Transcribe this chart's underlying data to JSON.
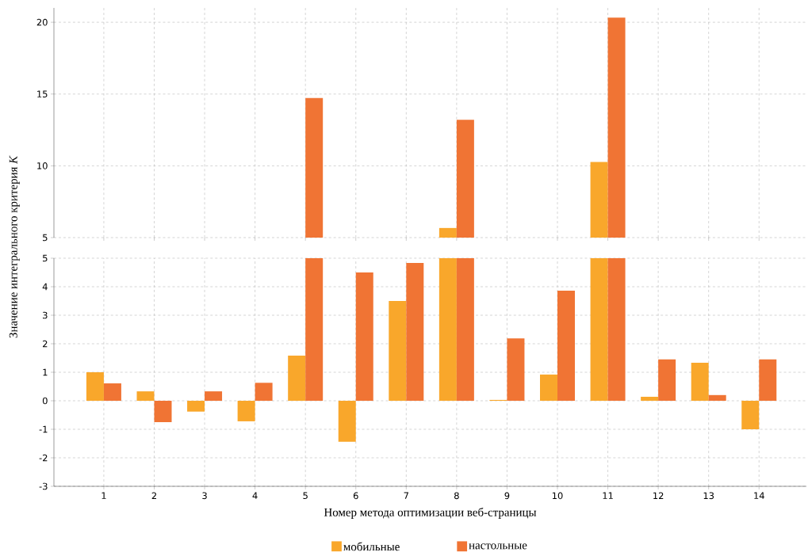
{
  "chart_data": [
    {
      "type": "bar",
      "categories": [
        "1",
        "2",
        "3",
        "4",
        "5",
        "6",
        "7",
        "8",
        "9",
        "10",
        "11",
        "12",
        "13",
        "14"
      ],
      "series": [
        {
          "color": "#f9a72b",
          "values": [
            null,
            null,
            null,
            null,
            null,
            null,
            null,
            5.67,
            null,
            null,
            10.27,
            null,
            null,
            null
          ]
        },
        {
          "color": "#f07434",
          "values": [
            null,
            null,
            null,
            null,
            14.72,
            null,
            null,
            13.2,
            null,
            null,
            20.32,
            null,
            null,
            null
          ]
        }
      ],
      "ylim": [
        5,
        21
      ],
      "yticks": [
        5,
        10,
        15,
        20
      ],
      "grid": true,
      "tick_labels": "y"
    },
    {
      "type": "bar",
      "categories": [
        "1",
        "2",
        "3",
        "4",
        "5",
        "6",
        "7",
        "8",
        "9",
        "10",
        "11",
        "12",
        "13",
        "14"
      ],
      "series": [
        {
          "name": "мобильные",
          "color": "#f9a72b",
          "values": [
            1.0,
            0.33,
            -0.38,
            -0.72,
            1.58,
            -1.44,
            3.5,
            5,
            0.03,
            0.92,
            5,
            0.14,
            1.33,
            -1.0
          ]
        },
        {
          "name": "настольные",
          "color": "#f07434",
          "values": [
            0.61,
            -0.75,
            0.33,
            0.63,
            5,
            4.5,
            4.83,
            5,
            2.19,
            3.86,
            5,
            1.45,
            0.2,
            1.45
          ]
        }
      ],
      "ylim": [
        -3,
        5
      ],
      "yticks": [
        -3,
        -2,
        -1,
        0,
        1,
        2,
        3,
        4,
        5
      ],
      "grid": true,
      "xlabel": "Номер метода оптимизации веб-страницы",
      "ylabel": "Значение интегрального критерия *K*",
      "legend": "bottom"
    }
  ]
}
